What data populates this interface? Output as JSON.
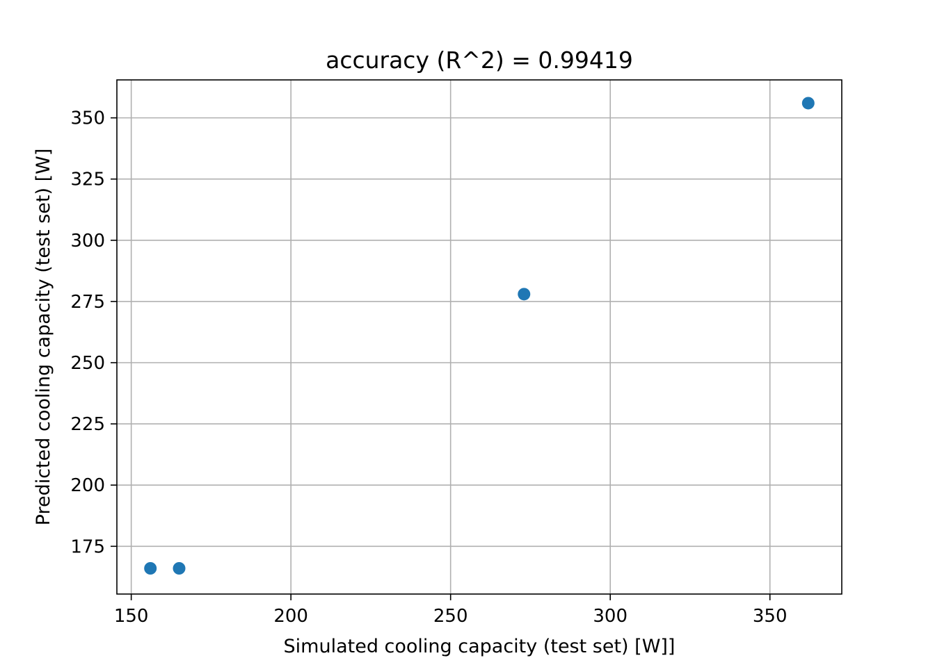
{
  "chart_data": {
    "type": "scatter",
    "title": "accuracy (R^2) =  0.99419",
    "xlabel": "Simulated cooling capacity (test set) [W]]",
    "ylabel": "Predicted cooling capacity (test set) [W]",
    "xlim": [
      145.5,
      372.5
    ],
    "ylim": [
      155.5,
      365.5
    ],
    "xticks": [
      150,
      200,
      250,
      300,
      350
    ],
    "yticks": [
      175,
      200,
      225,
      250,
      275,
      300,
      325,
      350
    ],
    "grid": true,
    "marker_color": "#1f77b4",
    "points": [
      {
        "x": 156,
        "y": 166
      },
      {
        "x": 165,
        "y": 166
      },
      {
        "x": 273,
        "y": 278
      },
      {
        "x": 362,
        "y": 356
      }
    ]
  }
}
